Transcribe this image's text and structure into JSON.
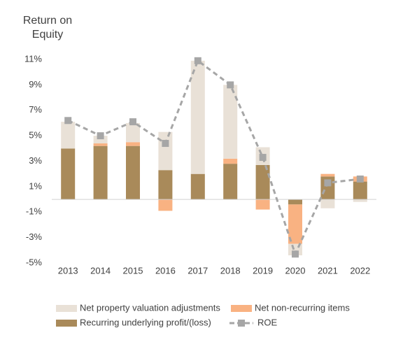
{
  "chart_data": {
    "type": "bar",
    "stacked": true,
    "title": "Return on Equity",
    "categories": [
      "2013",
      "2014",
      "2015",
      "2016",
      "2017",
      "2018",
      "2019",
      "2020",
      "2021",
      "2022"
    ],
    "series": [
      {
        "name": "Recurring underlying profit/(loss)",
        "type": "bar",
        "color": "#a98a5a",
        "values": [
          4.0,
          4.2,
          4.2,
          2.3,
          2.0,
          2.8,
          2.7,
          -0.4,
          1.8,
          1.4
        ]
      },
      {
        "name": "Net non-recurring items",
        "type": "bar",
        "color": "#f9b282",
        "values": [
          0,
          0.2,
          0.3,
          -0.9,
          0,
          0.4,
          -0.8,
          -3.1,
          0.2,
          0.4
        ]
      },
      {
        "name": "Net property valuation adjustments",
        "type": "bar",
        "color": "#e9e1d7",
        "values": [
          2.1,
          0.6,
          1.5,
          3.0,
          8.9,
          5.8,
          1.4,
          -0.9,
          -0.7,
          -0.2
        ]
      },
      {
        "name": "ROE",
        "type": "line",
        "color": "#a6a6a6",
        "values": [
          6.2,
          5.0,
          6.1,
          4.4,
          10.9,
          9.0,
          3.3,
          -4.3,
          1.3,
          1.6
        ]
      }
    ],
    "ylim": [
      -5,
      11
    ],
    "yticks": [
      {
        "value": -5,
        "label": "-5%"
      },
      {
        "value": -3,
        "label": "-3%"
      },
      {
        "value": -1,
        "label": "-1%"
      },
      {
        "value": 1,
        "label": "1%"
      },
      {
        "value": 3,
        "label": "3%"
      },
      {
        "value": 5,
        "label": "5%"
      },
      {
        "value": 7,
        "label": "7%"
      },
      {
        "value": 9,
        "label": "9%"
      },
      {
        "value": 11,
        "label": "11%"
      }
    ],
    "grid": false,
    "legend": "bottom"
  }
}
